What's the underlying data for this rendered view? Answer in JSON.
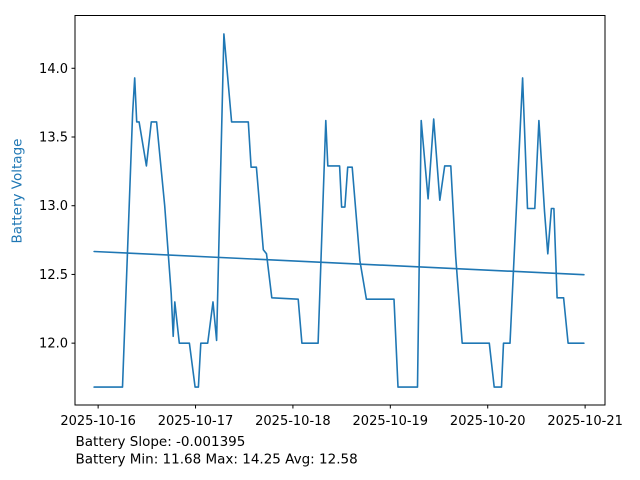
{
  "chart_data": {
    "type": "line",
    "title": "",
    "xlabel": "",
    "ylabel": "Battery Voltage",
    "ylabel_color": "#1f77b4",
    "line_color": "#1f77b4",
    "grid": false,
    "legend": "none",
    "x_unit": "hours since first x tick (ticks are days)",
    "x_tick_hours": [
      0,
      24,
      48,
      72,
      96,
      120
    ],
    "x_tick_labels": [
      "2025-10-16",
      "2025-10-17",
      "2025-10-18",
      "2025-10-19",
      "2025-10-20",
      "2025-10-21"
    ],
    "y_tick_values": [
      12.0,
      12.5,
      13.0,
      13.5,
      14.0
    ],
    "y_tick_labels": [
      "12.0",
      "12.5",
      "13.0",
      "13.5",
      "14.0"
    ],
    "xlim_hours": [
      -5.7,
      124.9
    ],
    "ylim": [
      11.55,
      14.384
    ],
    "series": [
      {
        "name": "Battery Voltage",
        "kind": "measurement",
        "points": [
          [
            -1.0,
            11.68
          ],
          [
            6.0,
            11.68
          ],
          [
            8.5,
            13.67
          ],
          [
            9.0,
            13.93
          ],
          [
            9.5,
            13.61
          ],
          [
            10.1,
            13.61
          ],
          [
            11.9,
            13.29
          ],
          [
            13.1,
            13.61
          ],
          [
            14.4,
            13.61
          ],
          [
            16.4,
            13.0
          ],
          [
            18.0,
            12.36
          ],
          [
            18.5,
            12.05
          ],
          [
            18.9,
            12.3
          ],
          [
            20.0,
            12.0
          ],
          [
            22.5,
            12.0
          ],
          [
            23.9,
            11.68
          ],
          [
            24.7,
            11.68
          ],
          [
            25.3,
            12.0
          ],
          [
            27.0,
            12.0
          ],
          [
            28.3,
            12.3
          ],
          [
            29.2,
            12.02
          ],
          [
            31.0,
            14.25
          ],
          [
            32.9,
            13.61
          ],
          [
            37.0,
            13.61
          ],
          [
            37.7,
            13.28
          ],
          [
            39.0,
            13.28
          ],
          [
            40.7,
            12.68
          ],
          [
            41.5,
            12.65
          ],
          [
            42.8,
            12.33
          ],
          [
            49.3,
            12.32
          ],
          [
            50.2,
            12.0
          ],
          [
            54.2,
            12.0
          ],
          [
            56.1,
            13.62
          ],
          [
            56.6,
            13.29
          ],
          [
            59.5,
            13.29
          ],
          [
            60.0,
            12.99
          ],
          [
            60.8,
            12.99
          ],
          [
            61.5,
            13.28
          ],
          [
            62.6,
            13.28
          ],
          [
            64.5,
            12.6
          ],
          [
            66.1,
            12.32
          ],
          [
            72.9,
            12.32
          ],
          [
            73.9,
            11.68
          ],
          [
            78.7,
            11.68
          ],
          [
            79.6,
            13.62
          ],
          [
            81.3,
            13.05
          ],
          [
            82.7,
            13.63
          ],
          [
            84.2,
            13.04
          ],
          [
            85.4,
            13.29
          ],
          [
            86.9,
            13.29
          ],
          [
            88.1,
            12.63
          ],
          [
            89.7,
            12.0
          ],
          [
            96.4,
            12.0
          ],
          [
            97.6,
            11.68
          ],
          [
            99.4,
            11.68
          ],
          [
            99.9,
            12.0
          ],
          [
            101.5,
            12.0
          ],
          [
            104.6,
            13.93
          ],
          [
            105.8,
            12.98
          ],
          [
            107.6,
            12.98
          ],
          [
            108.6,
            13.62
          ],
          [
            110.0,
            12.96
          ],
          [
            110.8,
            12.65
          ],
          [
            111.7,
            12.98
          ],
          [
            112.3,
            12.98
          ],
          [
            113.1,
            12.33
          ],
          [
            114.7,
            12.33
          ],
          [
            115.8,
            12.0
          ],
          [
            119.7,
            12.0
          ]
        ]
      },
      {
        "name": "Trend",
        "kind": "trend",
        "points": [
          [
            -1.0,
            12.667
          ],
          [
            119.7,
            12.498
          ]
        ]
      }
    ],
    "stats": {
      "slope": -0.001395,
      "min": 11.68,
      "max": 14.25,
      "avg": 12.58
    },
    "annotations": [
      "Battery Slope: -0.001395",
      "Battery Min: 11.68 Max: 14.25 Avg: 12.58"
    ]
  }
}
